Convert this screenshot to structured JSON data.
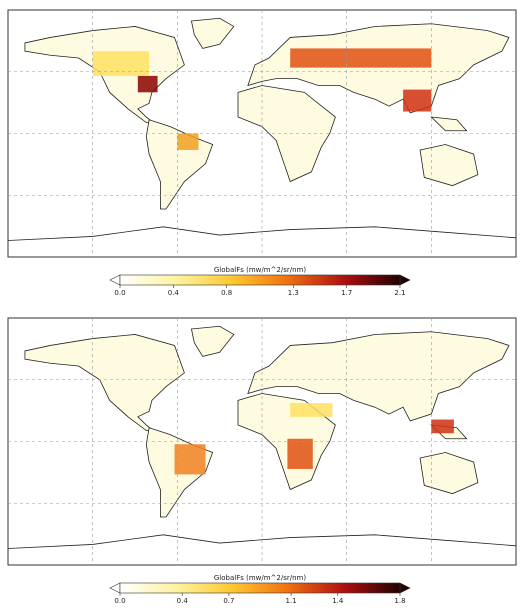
{
  "maps": [
    {
      "colorbar": {
        "label": "GlobalFs (mw/m^2/sr/nm)",
        "ticks": [
          {
            "value": 0,
            "label": "0.0"
          },
          0.4,
          0.8,
          1.3,
          1.7,
          2.1
        ]
      }
    },
    {
      "colorbar": {
        "label": "GlobalFs (mw/m^2/sr/nm)",
        "ticks": [
          {
            "value": 0,
            "label": "0.0"
          },
          0.4,
          0.7,
          1.1,
          1.4,
          1.8
        ]
      }
    }
  ]
}
